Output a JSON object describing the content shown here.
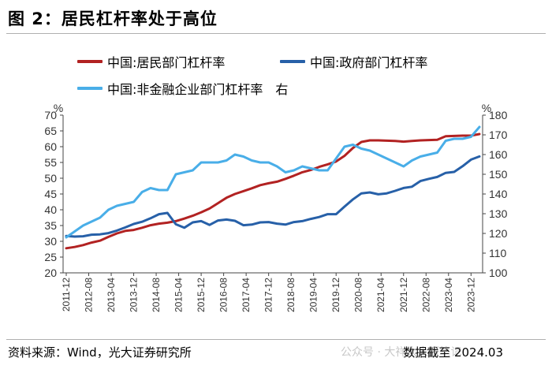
{
  "header": {
    "title": "图 2：居民杠杆率处于高位"
  },
  "footer": {
    "source": "资料来源：Wind，光大证券研究所",
    "watermark": "公众号 · 大祥大大研笔记",
    "date": "数据截至 2024.03"
  },
  "colors": {
    "household": "#b22222",
    "government": "#2760a8",
    "nonfinancial": "#49aee8"
  },
  "chart_data": {
    "type": "line",
    "left_axis_unit": "%",
    "right_axis_unit": "%",
    "ylim_left": [
      20,
      70
    ],
    "ylim_right": [
      100,
      180
    ],
    "yticks_left": [
      "20",
      "25",
      "30",
      "35",
      "40",
      "45",
      "50",
      "55",
      "60",
      "65",
      "70"
    ],
    "yticks_right": [
      "100",
      "110",
      "120",
      "130",
      "140",
      "150",
      "160",
      "170",
      "180"
    ],
    "x_ticks": [
      "2011-12",
      "2012-08",
      "2013-04",
      "2013-12",
      "2014-08",
      "2015-04",
      "2015-12",
      "2016-08",
      "2017-04",
      "2017-12",
      "2018-08",
      "2019-04",
      "2019-12",
      "2020-08",
      "2021-04",
      "2021-12",
      "2022-08",
      "2023-04",
      "2023-12"
    ],
    "grid": false,
    "series": [
      {
        "name": "中国:居民部门杠杆率",
        "axis": "left",
        "x": [
          "2011-12",
          "2012-03",
          "2012-06",
          "2012-09",
          "2012-12",
          "2013-03",
          "2013-06",
          "2013-09",
          "2013-12",
          "2014-03",
          "2014-06",
          "2014-09",
          "2014-12",
          "2015-03",
          "2015-06",
          "2015-09",
          "2015-12",
          "2016-03",
          "2016-06",
          "2016-09",
          "2016-12",
          "2017-03",
          "2017-06",
          "2017-09",
          "2017-12",
          "2018-03",
          "2018-06",
          "2018-09",
          "2018-12",
          "2019-03",
          "2019-06",
          "2019-09",
          "2019-12",
          "2020-03",
          "2020-06",
          "2020-09",
          "2020-12",
          "2021-03",
          "2021-06",
          "2021-09",
          "2021-12",
          "2022-03",
          "2022-06",
          "2022-09",
          "2022-12",
          "2023-03",
          "2023-06",
          "2023-09",
          "2023-12",
          "2024-03"
        ],
        "values": [
          27.8,
          28.2,
          28.8,
          29.6,
          30.2,
          31.4,
          32.5,
          33.3,
          33.6,
          34.3,
          35.1,
          35.6,
          35.9,
          36.4,
          37.2,
          38.1,
          39.2,
          40.4,
          42.1,
          43.8,
          45.0,
          45.9,
          46.8,
          47.8,
          48.4,
          48.9,
          49.8,
          50.8,
          51.9,
          52.6,
          53.6,
          54.4,
          55.3,
          57.1,
          59.6,
          61.5,
          62.0,
          62.0,
          61.9,
          61.8,
          61.6,
          61.8,
          62.0,
          62.1,
          62.2,
          63.3,
          63.4,
          63.5,
          63.5,
          64.0
        ]
      },
      {
        "name": "中国:政府部门杠杆率",
        "axis": "left",
        "x": [
          "2011-12",
          "2012-03",
          "2012-06",
          "2012-09",
          "2012-12",
          "2013-03",
          "2013-06",
          "2013-09",
          "2013-12",
          "2014-03",
          "2014-06",
          "2014-09",
          "2014-12",
          "2015-03",
          "2015-06",
          "2015-09",
          "2015-12",
          "2016-03",
          "2016-06",
          "2016-09",
          "2016-12",
          "2017-03",
          "2017-06",
          "2017-09",
          "2017-12",
          "2018-03",
          "2018-06",
          "2018-09",
          "2018-12",
          "2019-03",
          "2019-06",
          "2019-09",
          "2019-12",
          "2020-03",
          "2020-06",
          "2020-09",
          "2020-12",
          "2021-03",
          "2021-06",
          "2021-09",
          "2021-12",
          "2022-03",
          "2022-06",
          "2022-09",
          "2022-12",
          "2023-03",
          "2023-06",
          "2023-09",
          "2023-12",
          "2024-03"
        ],
        "values": [
          31.7,
          31.5,
          31.6,
          32.1,
          32.2,
          32.6,
          33.4,
          34.4,
          35.5,
          36.2,
          37.3,
          38.6,
          39.0,
          35.4,
          34.3,
          36.0,
          36.4,
          35.2,
          36.6,
          36.9,
          36.5,
          35.1,
          35.3,
          36.0,
          36.1,
          35.6,
          35.3,
          36.1,
          36.4,
          37.1,
          37.7,
          38.6,
          38.6,
          41.0,
          43.3,
          45.2,
          45.5,
          44.9,
          45.2,
          46.0,
          46.9,
          47.3,
          49.1,
          49.8,
          50.4,
          51.7,
          52.0,
          53.8,
          55.9,
          56.9
        ]
      },
      {
        "name": "中国:非金融企业部门杠杆率",
        "axis": "right",
        "x": [
          "2011-12",
          "2012-03",
          "2012-06",
          "2012-09",
          "2012-12",
          "2013-03",
          "2013-06",
          "2013-09",
          "2013-12",
          "2014-03",
          "2014-06",
          "2014-09",
          "2014-12",
          "2015-03",
          "2015-06",
          "2015-09",
          "2015-12",
          "2016-03",
          "2016-06",
          "2016-09",
          "2016-12",
          "2017-03",
          "2017-06",
          "2017-09",
          "2017-12",
          "2018-03",
          "2018-06",
          "2018-09",
          "2018-12",
          "2019-03",
          "2019-06",
          "2019-09",
          "2019-12",
          "2020-03",
          "2020-06",
          "2020-09",
          "2020-12",
          "2021-03",
          "2021-06",
          "2021-09",
          "2021-12",
          "2022-03",
          "2022-06",
          "2022-09",
          "2022-12",
          "2023-03",
          "2023-06",
          "2023-09",
          "2023-12",
          "2024-03"
        ],
        "values": [
          118,
          121,
          124,
          126,
          128,
          132,
          134,
          135,
          136,
          141,
          143,
          142,
          142,
          150,
          151,
          152,
          156,
          156,
          156,
          157,
          160,
          159,
          157,
          156,
          156,
          154,
          151,
          152,
          154,
          153,
          152,
          152,
          158,
          164,
          165,
          163,
          162,
          160,
          158,
          156,
          154,
          157,
          159,
          160,
          161,
          167,
          168,
          168,
          169,
          174
        ]
      }
    ],
    "annotations": [
      "右"
    ]
  }
}
